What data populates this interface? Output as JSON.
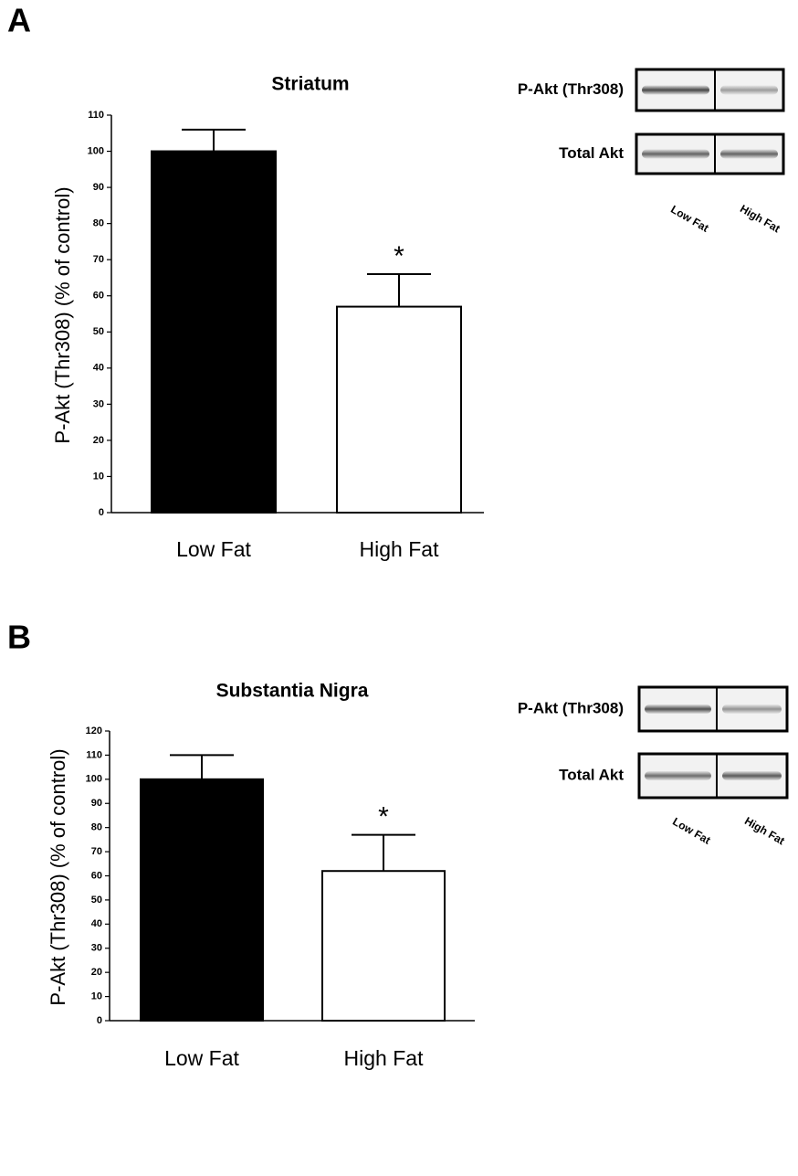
{
  "chart_data": [
    {
      "type": "bar",
      "panel": "A",
      "title": "Striatum",
      "y_label": "P-Akt (Thr308)  (% of control)",
      "categories": [
        "Low Fat",
        "High Fat"
      ],
      "values": [
        100,
        57
      ],
      "errors": [
        6,
        9
      ],
      "colors": [
        "#000000",
        "#ffffff"
      ],
      "ylim": [
        0,
        110
      ],
      "yticks": [
        0,
        10,
        20,
        30,
        40,
        50,
        60,
        70,
        80,
        90,
        100,
        110
      ],
      "annotations": [
        {
          "text": "*",
          "category": "High Fat"
        }
      ],
      "blot": {
        "rows": [
          "P-Akt (Thr308)",
          "Total Akt"
        ],
        "lanes": [
          "Low Fat",
          "High Fat"
        ]
      }
    },
    {
      "type": "bar",
      "panel": "B",
      "title": "Substantia Nigra",
      "y_label": "P-Akt (Thr308)  (% of control)",
      "categories": [
        "Low Fat",
        "High Fat"
      ],
      "values": [
        100,
        62
      ],
      "errors": [
        10,
        15
      ],
      "colors": [
        "#000000",
        "#ffffff"
      ],
      "ylim": [
        0,
        120
      ],
      "yticks": [
        0,
        10,
        20,
        30,
        40,
        50,
        60,
        70,
        80,
        90,
        100,
        110,
        120
      ],
      "annotations": [
        {
          "text": "*",
          "category": "High Fat"
        }
      ],
      "blot": {
        "rows": [
          "P-Akt (Thr308)",
          "Total Akt"
        ],
        "lanes": [
          "Low Fat",
          "High Fat"
        ]
      }
    }
  ]
}
